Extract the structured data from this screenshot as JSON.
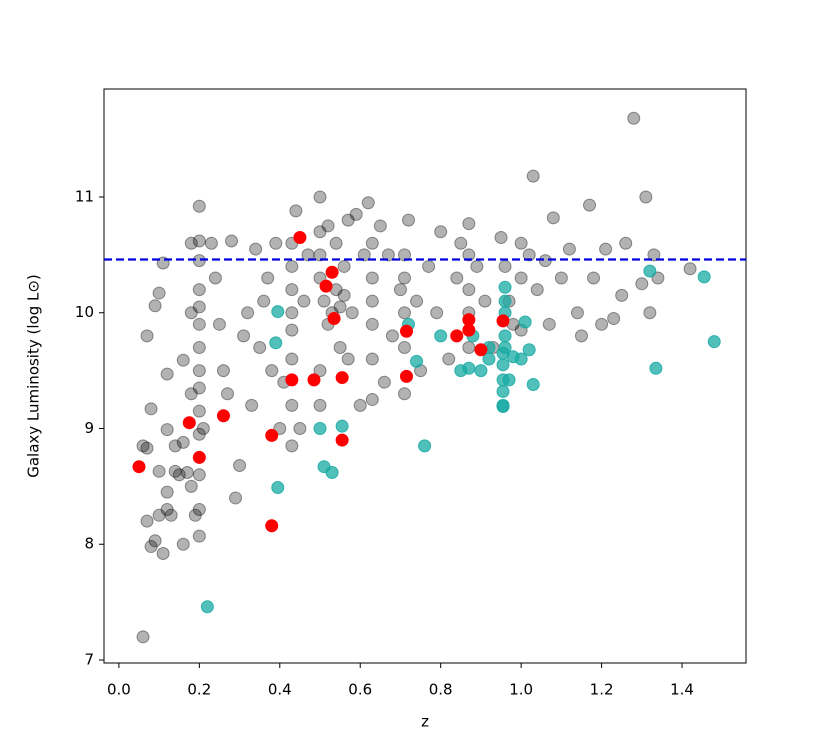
{
  "chart_data": {
    "type": "scatter",
    "x_label": "z",
    "y_label": "Galaxy Luminosity (log L⊙)",
    "xlim": [
      -0.037,
      1.559
    ],
    "ylim": [
      6.974,
      11.933
    ],
    "xticks": [
      {
        "value": 0,
        "label": "0.0"
      },
      0.2,
      0.4,
      0.6,
      0.8,
      {
        "value": 1,
        "label": "1.0"
      },
      1.2,
      1.4
    ],
    "yticks": [
      7,
      8,
      9,
      10,
      11
    ],
    "hline": {
      "value": 10.46,
      "color": "#0000dd",
      "style": "dashed"
    },
    "series": [
      {
        "color": "#000000",
        "opacity": 0.3,
        "x": [
          0.06,
          0.07,
          0.08,
          0.09,
          0.1,
          0.11,
          0.12,
          0.12,
          0.13,
          0.06,
          0.07,
          0.08,
          0.1,
          0.12,
          0.14,
          0.15,
          0.16,
          0.17,
          0.14,
          0.07,
          0.09,
          0.1,
          0.11,
          0.12,
          0.16,
          0.16,
          0.18,
          0.18,
          0.18,
          0.18,
          0.2,
          0.2,
          0.2,
          0.2,
          0.2,
          0.2,
          0.2,
          0.2,
          0.2,
          0.2,
          0.2,
          0.2,
          0.2,
          0.2,
          0.19,
          0.21,
          0.23,
          0.24,
          0.25,
          0.26,
          0.27,
          0.28,
          0.29,
          0.3,
          0.31,
          0.32,
          0.33,
          0.34,
          0.35,
          0.36,
          0.37,
          0.38,
          0.39,
          0.4,
          0.41,
          0.43,
          0.43,
          0.43,
          0.43,
          0.43,
          0.43,
          0.43,
          0.43,
          0.44,
          0.45,
          0.46,
          0.47,
          0.5,
          0.5,
          0.5,
          0.5,
          0.5,
          0.5,
          0.51,
          0.52,
          0.52,
          0.53,
          0.54,
          0.54,
          0.55,
          0.55,
          0.56,
          0.56,
          0.57,
          0.57,
          0.58,
          0.59,
          0.6,
          0.61,
          0.62,
          0.63,
          0.63,
          0.63,
          0.63,
          0.63,
          0.63,
          0.65,
          0.66,
          0.67,
          0.68,
          0.7,
          0.71,
          0.71,
          0.71,
          0.71,
          0.71,
          0.72,
          0.74,
          0.75,
          0.77,
          0.79,
          0.8,
          0.82,
          0.84,
          0.85,
          0.87,
          0.87,
          0.87,
          0.87,
          0.87,
          0.89,
          0.91,
          0.93,
          0.95,
          0.96,
          0.97,
          0.98,
          1.0,
          1.0,
          1.0,
          1.02,
          1.03,
          1.04,
          1.06,
          1.07,
          1.08,
          1.1,
          1.12,
          1.14,
          1.15,
          1.17,
          1.18,
          1.2,
          1.21,
          1.23,
          1.25,
          1.26,
          1.28,
          1.3,
          1.31,
          1.32,
          1.33,
          1.34,
          1.42
        ],
        "values": [
          7.2,
          8.2,
          7.98,
          8.03,
          8.25,
          7.92,
          8.3,
          8.45,
          8.25,
          8.85,
          8.83,
          9.17,
          8.63,
          8.99,
          8.63,
          8.6,
          8.0,
          8.62,
          8.85,
          9.8,
          10.06,
          10.17,
          10.43,
          9.47,
          8.88,
          9.59,
          8.5,
          9.3,
          10.0,
          10.6,
          8.07,
          8.3,
          8.6,
          8.95,
          9.15,
          9.35,
          9.5,
          9.7,
          9.9,
          10.05,
          10.2,
          10.45,
          10.62,
          10.92,
          8.25,
          9.0,
          10.6,
          10.3,
          9.9,
          9.5,
          9.3,
          10.62,
          8.4,
          8.68,
          9.8,
          10.0,
          9.2,
          10.55,
          9.7,
          10.1,
          10.3,
          9.5,
          10.6,
          9.0,
          9.4,
          8.85,
          9.2,
          9.6,
          9.85,
          10.0,
          10.2,
          10.4,
          10.6,
          10.88,
          9.0,
          10.1,
          10.5,
          11.0,
          10.7,
          10.5,
          10.3,
          9.5,
          9.2,
          10.1,
          10.75,
          9.9,
          10.0,
          10.6,
          10.2,
          10.05,
          9.7,
          10.4,
          10.15,
          10.8,
          9.6,
          10.0,
          10.85,
          9.2,
          10.5,
          10.95,
          10.6,
          10.3,
          10.1,
          9.9,
          9.6,
          9.25,
          10.75,
          9.4,
          10.5,
          9.8,
          10.2,
          9.3,
          9.7,
          10.0,
          10.3,
          10.5,
          10.8,
          10.1,
          9.5,
          10.4,
          10.0,
          10.7,
          9.6,
          10.3,
          10.6,
          10.77,
          10.5,
          10.2,
          10.0,
          9.7,
          10.4,
          10.1,
          9.7,
          10.65,
          10.4,
          10.1,
          9.9,
          10.6,
          10.3,
          9.85,
          10.5,
          11.18,
          10.2,
          10.45,
          9.9,
          10.82,
          10.3,
          10.55,
          10.0,
          9.8,
          10.93,
          10.3,
          9.9,
          10.55,
          9.95,
          10.15,
          10.6,
          11.68,
          10.25,
          11.0,
          10.0,
          10.5,
          10.3,
          10.38
        ]
      },
      {
        "color": "#17a9a3",
        "opacity": 0.75,
        "x": [
          0.22,
          0.395,
          0.395,
          0.39,
          0.5,
          0.51,
          0.53,
          0.555,
          0.72,
          0.74,
          0.76,
          0.8,
          0.85,
          0.87,
          0.9,
          0.92,
          0.955,
          0.955,
          0.955,
          0.955,
          0.955,
          0.955,
          0.96,
          0.96,
          0.96,
          0.96,
          0.96,
          0.97,
          0.98,
          1.0,
          1.01,
          1.02,
          1.03,
          1.32,
          1.335,
          1.455,
          1.48,
          0.88,
          0.92
        ],
        "values": [
          7.46,
          8.49,
          10.01,
          9.74,
          9.0,
          8.67,
          8.62,
          9.02,
          9.9,
          9.58,
          8.85,
          9.8,
          9.5,
          9.52,
          9.5,
          9.6,
          9.19,
          9.2,
          9.32,
          9.42,
          9.55,
          9.65,
          9.7,
          9.8,
          10.0,
          10.1,
          10.22,
          9.42,
          9.62,
          9.6,
          9.92,
          9.68,
          9.38,
          10.36,
          9.52,
          10.31,
          9.75,
          9.8,
          9.7
        ]
      },
      {
        "color": "#ff0000",
        "opacity": 1,
        "x": [
          0.05,
          0.175,
          0.2,
          0.26,
          0.38,
          0.38,
          0.43,
          0.45,
          0.485,
          0.515,
          0.53,
          0.535,
          0.555,
          0.555,
          0.715,
          0.715,
          0.84,
          0.87,
          0.87,
          0.9,
          0.955
        ],
        "values": [
          8.67,
          9.05,
          8.75,
          9.11,
          8.94,
          8.16,
          9.42,
          10.65,
          9.42,
          10.23,
          10.35,
          9.95,
          9.44,
          8.9,
          9.45,
          9.84,
          9.8,
          9.94,
          9.85,
          9.68,
          9.93
        ]
      }
    ]
  }
}
